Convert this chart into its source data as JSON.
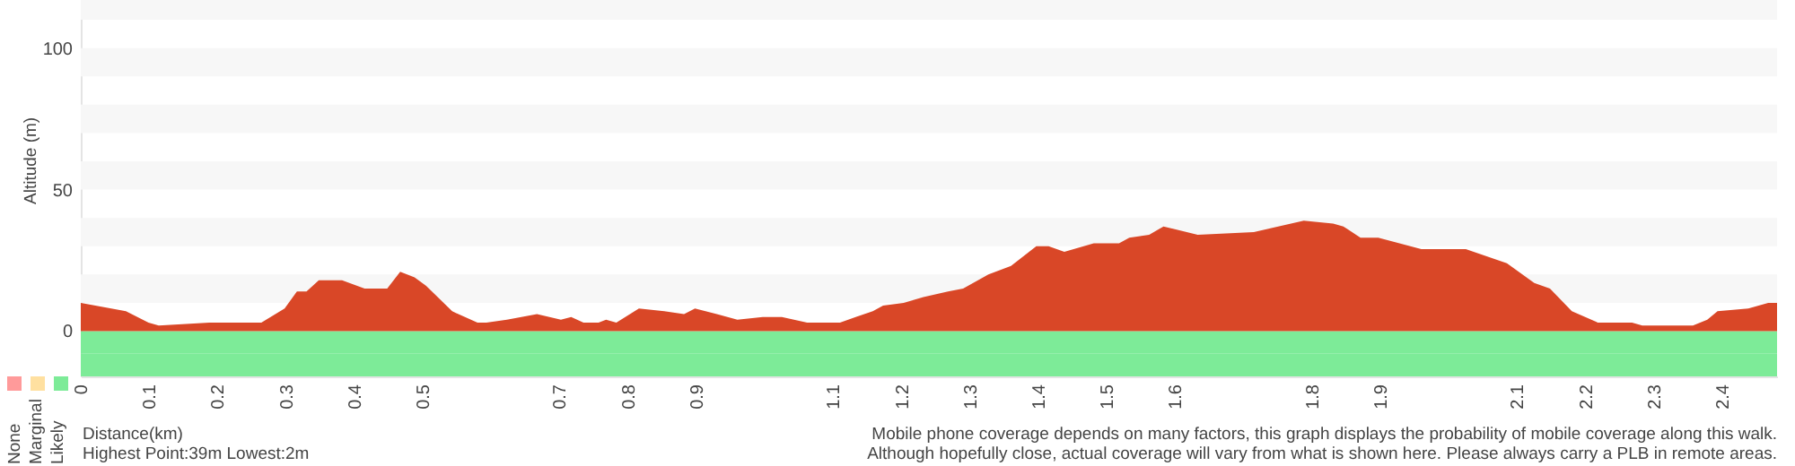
{
  "chart_data": {
    "type": "area",
    "xlabel": "Distance(km)",
    "ylabel": "Altitude (m)",
    "x": [
      0,
      0.066,
      0.099,
      0.114,
      0.188,
      0.264,
      0.298,
      0.316,
      0.33,
      0.348,
      0.382,
      0.415,
      0.448,
      0.467,
      0.488,
      0.505,
      0.543,
      0.58,
      0.593,
      0.623,
      0.667,
      0.702,
      0.717,
      0.735,
      0.757,
      0.768,
      0.783,
      0.816,
      0.853,
      0.882,
      0.898,
      0.93,
      0.96,
      0.997,
      1.025,
      1.062,
      1.11,
      1.133,
      1.158,
      1.173,
      1.203,
      1.232,
      1.268,
      1.29,
      1.327,
      1.36,
      1.397,
      1.415,
      1.438,
      1.481,
      1.518,
      1.533,
      1.562,
      1.583,
      1.633,
      1.715,
      1.788,
      1.831,
      1.846,
      1.871,
      1.897,
      1.96,
      2.025,
      2.085,
      2.125,
      2.148,
      2.18,
      2.218,
      2.268,
      2.283,
      2.357,
      2.378,
      2.393,
      2.438,
      2.467,
      2.48
    ],
    "series": [
      {
        "color": "#d94727",
        "values": [
          10,
          7,
          3,
          2,
          3,
          3,
          8,
          14,
          14,
          18,
          18,
          15,
          15,
          21,
          19,
          16,
          7,
          3,
          3,
          4,
          6,
          4,
          5,
          3,
          3,
          4,
          3,
          8,
          7,
          6,
          8,
          6,
          4,
          5,
          5,
          3,
          3,
          5,
          7,
          9,
          10,
          12,
          14,
          15,
          20,
          23,
          30,
          30,
          28,
          31,
          31,
          33,
          34,
          37,
          34,
          35,
          39,
          38,
          37,
          33,
          33,
          29,
          29,
          24,
          17,
          15,
          7,
          3,
          3,
          2,
          2,
          4,
          7,
          8,
          10,
          10
        ]
      }
    ],
    "xlim": [
      0,
      2.48
    ],
    "ylim": [
      -16,
      117
    ],
    "yticks": [
      0,
      50,
      100
    ],
    "xticks": [
      0,
      0.1,
      0.2,
      0.3,
      0.4,
      0.5,
      0.7,
      0.8,
      0.9,
      1.1,
      1.2,
      1.3,
      1.4,
      1.5,
      1.6,
      1.8,
      1.9,
      2.1,
      2.2,
      2.3,
      2.4
    ],
    "bands": [
      {
        "axis": "y",
        "from": 10,
        "to": 20,
        "color": "#f7f7f7"
      },
      {
        "axis": "y",
        "from": 30,
        "to": 40,
        "color": "#f7f7f7"
      },
      {
        "axis": "y",
        "from": 50,
        "to": 60,
        "color": "#f7f7f7"
      },
      {
        "axis": "y",
        "from": 70,
        "to": 80,
        "color": "#f7f7f7"
      },
      {
        "axis": "y",
        "from": 90,
        "to": 100,
        "color": "#f7f7f7"
      },
      {
        "axis": "y",
        "from": 110,
        "to": 117,
        "color": "#f7f7f7"
      },
      {
        "axis": "y",
        "from": -8,
        "to": 0,
        "color": "#7deb98"
      },
      {
        "axis": "y",
        "from": -16,
        "to": -8,
        "color": "#7deb98"
      }
    ],
    "grid": false,
    "annotations": [
      "None",
      "Marginal",
      "Likely",
      "Highest Point:39m Lowest:2m",
      "Mobile phone coverage depends on many factors, this graph displays the probability of mobile coverage along this walk.",
      "Although hopefully close, actual coverage will vary from what is shown here. Please always carry a PLB in remote areas."
    ]
  }
}
